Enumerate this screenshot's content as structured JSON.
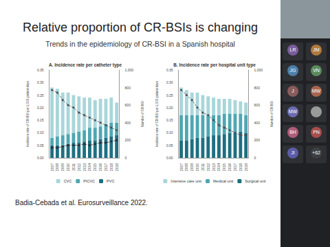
{
  "slide": {
    "title": "Relative proportion of CR-BSIs is changing",
    "subtitle": "Trends in the epidemiology of CR-BSI in a Spanish hospital",
    "citation": "Badia-Cebada et al. Eurosurveillance 2022."
  },
  "participants": [
    {
      "initials": "LR",
      "color": "#7a5c99"
    },
    {
      "initials": "JM",
      "color": "#b07a3c"
    },
    {
      "initials": "JG",
      "color": "#4d7fa8"
    },
    {
      "initials": "VN",
      "color": "#5c8a5c"
    },
    {
      "initials": "J",
      "color": "#8a5c5c"
    },
    {
      "initials": "MW",
      "color": "#a8654d"
    },
    {
      "initials": "MW",
      "color": "#6b6bb0"
    },
    {
      "photo": true,
      "color": "#9a9a9a"
    },
    {
      "initials": "BH",
      "color": "#b05c7a"
    },
    {
      "initials": "PN",
      "color": "#a84d4d"
    },
    {
      "initials": "JI",
      "color": "#5c5ca8"
    },
    {
      "initials": "+62",
      "color": "#3c4043"
    }
  ],
  "chart_data": [
    {
      "type": "bar",
      "title": "A. Incidence rate per catheter type",
      "categories": [
        "2007",
        "2008",
        "2009",
        "2010",
        "2011",
        "2012",
        "2013",
        "2014",
        "2015",
        "2016",
        "2017",
        "2018",
        "2019"
      ],
      "ylabel": "Incidence rate of CR-BSI per 1,000 patient-days",
      "y2label": "Number of CR-BSI",
      "ylim": [
        0,
        0.35
      ],
      "yticks": [
        {
          "value": 0,
          "label": "0.00"
        },
        {
          "value": 0.05,
          "label": "0.05"
        },
        {
          "value": 0.1,
          "label": "0.10"
        },
        {
          "value": 0.15,
          "label": "0.15"
        },
        {
          "value": 0.2,
          "label": "0.20"
        },
        {
          "value": 0.25,
          "label": "0.25"
        },
        {
          "value": 0.3,
          "label": "0.30"
        },
        {
          "value": 0.35,
          "label": "0.35"
        }
      ],
      "y2lim": [
        0,
        1000
      ],
      "y2ticks": [
        0,
        200,
        400,
        600,
        800,
        {
          "value": 1000,
          "label": "1,000"
        }
      ],
      "stacked": true,
      "grid": false,
      "legend": "bottom",
      "series": [
        {
          "name": "CVC",
          "color": "#a9d6da",
          "values": [
            0.2,
            0.19,
            0.17,
            0.165,
            0.15,
            0.14,
            0.13,
            0.12,
            0.11,
            0.11,
            0.1,
            0.1,
            0.08
          ]
        },
        {
          "name": "PICVC",
          "color": "#4fa7b3",
          "values": [
            0.03,
            0.035,
            0.04,
            0.04,
            0.04,
            0.045,
            0.045,
            0.05,
            0.05,
            0.05,
            0.055,
            0.055,
            0.05
          ]
        },
        {
          "name": "PVC",
          "color": "#1f6f82",
          "values": [
            0.05,
            0.05,
            0.05,
            0.055,
            0.06,
            0.06,
            0.065,
            0.07,
            0.07,
            0.075,
            0.08,
            0.085,
            0.09
          ]
        },
        {
          "type": "line",
          "color": "#4d4d4d",
          "line_style": "dashed",
          "marker": "circle",
          "values": [
            0.27,
            0.26,
            0.23,
            0.21,
            0.2,
            0.18,
            0.17,
            0.16,
            0.15,
            0.14,
            0.13,
            0.12,
            0.11
          ]
        },
        {
          "type": "line",
          "color": "#2b2b2b",
          "line_style": "dashed",
          "marker": "circle",
          "values": [
            0.04,
            0.04,
            0.045,
            0.05,
            0.05,
            0.05,
            0.055,
            0.05,
            0.055,
            0.06,
            0.06,
            0.065,
            0.07
          ]
        }
      ]
    },
    {
      "type": "bar",
      "title": "B. Incidence rate per hospital unit type",
      "categories": [
        "2007",
        "2008",
        "2009",
        "2010",
        "2011",
        "2012",
        "2013",
        "2014",
        "2015",
        "2016",
        "2017",
        "2018",
        "2019"
      ],
      "ylabel": "Incidence rate of CR-BSI per 1,000 patient-days",
      "y2label": "Number of CR-BSI",
      "ylim": [
        0,
        0.35
      ],
      "yticks": [
        {
          "value": 0,
          "label": "0.00"
        },
        {
          "value": 0.05,
          "label": "0.05"
        },
        {
          "value": 0.1,
          "label": "0.10"
        },
        {
          "value": 0.15,
          "label": "0.15"
        },
        {
          "value": 0.2,
          "label": "0.20"
        },
        {
          "value": 0.25,
          "label": "0.25"
        },
        {
          "value": 0.3,
          "label": "0.30"
        },
        {
          "value": 0.35,
          "label": "0.35"
        }
      ],
      "y2lim": [
        0,
        1000
      ],
      "y2ticks": [
        0,
        200,
        400,
        600,
        800,
        {
          "value": 1000,
          "label": "1,000"
        }
      ],
      "stacked": true,
      "grid": false,
      "legend": "bottom",
      "series": [
        {
          "name": "Intensive care unit",
          "color": "#a9d6da",
          "values": [
            0.11,
            0.1,
            0.09,
            0.09,
            0.08,
            0.075,
            0.07,
            0.065,
            0.06,
            0.06,
            0.055,
            0.05,
            0.05
          ]
        },
        {
          "name": "Medical unit",
          "color": "#4fa7b3",
          "values": [
            0.1,
            0.1,
            0.095,
            0.09,
            0.09,
            0.085,
            0.08,
            0.08,
            0.08,
            0.075,
            0.075,
            0.07,
            0.07
          ]
        },
        {
          "name": "Surgical unit",
          "color": "#1f6f82",
          "values": [
            0.07,
            0.07,
            0.075,
            0.08,
            0.08,
            0.085,
            0.09,
            0.09,
            0.095,
            0.1,
            0.1,
            0.105,
            0.1
          ]
        },
        {
          "type": "line",
          "color": "#4d4d4d",
          "line_style": "dashed",
          "marker": "circle",
          "values": [
            0.27,
            0.25,
            0.23,
            0.2,
            0.18,
            0.17,
            0.15,
            0.13,
            0.12,
            0.11,
            0.1,
            0.09,
            0.09
          ]
        }
      ]
    }
  ]
}
